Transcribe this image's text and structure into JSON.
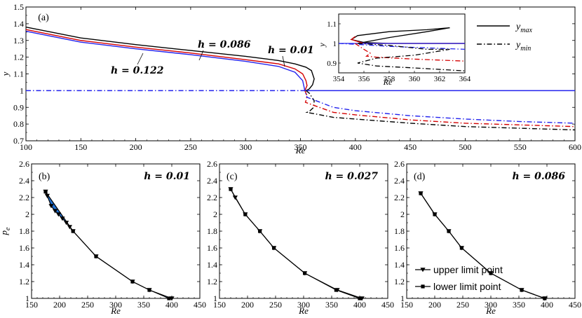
{
  "chart_data": [
    {
      "panel": "(a)",
      "type": "line",
      "xlabel": "Re",
      "ylabel": "y",
      "xlim": [
        100,
        600
      ],
      "ylim": [
        0.7,
        1.5
      ],
      "xticks": [
        "100",
        "150",
        "200",
        "250",
        "300",
        "350",
        "400",
        "450",
        "500",
        "550",
        "600"
      ],
      "yticks": [
        "0.7",
        "0.8",
        "0.9",
        "1",
        "1.1",
        "1.2",
        "1.3",
        "1.4",
        "1.5"
      ],
      "annotations": [
        "h = 0.086",
        "h = 0.01",
        "h = 0.122"
      ],
      "legend": {
        "position": "top-right",
        "entries": [
          "y_max",
          "y_min"
        ]
      },
      "series": [
        {
          "name": "h = 0.086",
          "kind": "y_max",
          "color": "#000000",
          "dash": "solid",
          "x": [
            100,
            150,
            200,
            250,
            300,
            330,
            345,
            355,
            360,
            362.5,
            361,
            358,
            355
          ],
          "y": [
            1.38,
            1.315,
            1.275,
            1.24,
            1.205,
            1.18,
            1.16,
            1.14,
            1.12,
            1.07,
            1.035,
            1.01,
            1.0
          ]
        },
        {
          "name": "h = 0.01",
          "kind": "y_max",
          "color": "#d40000",
          "dash": "solid",
          "x": [
            100,
            150,
            200,
            250,
            300,
            330,
            345,
            352,
            355,
            356,
            354
          ],
          "y": [
            1.365,
            1.3,
            1.26,
            1.225,
            1.185,
            1.16,
            1.13,
            1.1,
            1.06,
            1.03,
            1.0
          ]
        },
        {
          "name": "h = 0.122",
          "kind": "y_max",
          "color": "#2222ee",
          "dash": "solid",
          "x": [
            100,
            150,
            200,
            250,
            300,
            330,
            345,
            352,
            354,
            600
          ],
          "y": [
            1.355,
            1.29,
            1.25,
            1.215,
            1.175,
            1.145,
            1.11,
            1.06,
            1.0,
            1.0
          ]
        },
        {
          "name": "h = 0.086",
          "kind": "y_min",
          "color": "#000000",
          "dash": "dashdot",
          "x": [
            355,
            358,
            362.5,
            362,
            358,
            356,
            380,
            400,
            450,
            500,
            550,
            600
          ],
          "y": [
            1.0,
            0.985,
            0.94,
            0.9,
            0.875,
            0.87,
            0.84,
            0.83,
            0.805,
            0.785,
            0.775,
            0.765
          ]
        },
        {
          "name": "h = 0.01",
          "kind": "y_min",
          "color": "#d40000",
          "dash": "dashdot",
          "x": [
            354,
            356,
            355,
            354.5,
            380,
            400,
            450,
            500,
            550,
            600
          ],
          "y": [
            1.0,
            0.97,
            0.94,
            0.93,
            0.87,
            0.855,
            0.825,
            0.805,
            0.795,
            0.785
          ]
        },
        {
          "name": "h = 0.122",
          "kind": "y_min",
          "color": "#2222ee",
          "dash": "dashdot",
          "x": [
            100,
            354,
            356,
            380,
            400,
            450,
            500,
            550,
            600
          ],
          "y": [
            1.0,
            1.0,
            0.96,
            0.9,
            0.88,
            0.85,
            0.83,
            0.815,
            0.805
          ]
        }
      ],
      "inset": {
        "xlabel": "Re",
        "ylabel": "y",
        "xlim": [
          354,
          364
        ],
        "ylim": [
          0.85,
          1.15
        ],
        "xticks": [
          "354",
          "356",
          "358",
          "360",
          "362",
          "364"
        ],
        "yticks": [
          "0.9",
          "1",
          "1.1"
        ],
        "series": [
          {
            "color": "#000000",
            "dash": "solid",
            "x": [
              364,
              360,
              358,
              356,
              355,
              355.5,
              358,
              361,
              362.8
            ],
            "y": [
              1.0,
              1.0,
              1.0,
              1.005,
              1.02,
              1.04,
              1.06,
              1.07,
              1.08
            ]
          },
          {
            "color": "#000000",
            "dash": "solid",
            "x": [
              355.5,
              358,
              361,
              362.8
            ],
            "y": [
              1.0,
              1.03,
              1.06,
              1.08
            ]
          },
          {
            "color": "#d40000",
            "dash": "solid",
            "x": [
              364,
              356,
              355,
              355.3
            ],
            "y": [
              1.0,
              1.0,
              1.02,
              1.035
            ]
          },
          {
            "color": "#2222ee",
            "dash": "solid",
            "x": [
              354,
              364
            ],
            "y": [
              1.0,
              1.0
            ]
          },
          {
            "color": "#2222ee",
            "dash": "dashdot",
            "x": [
              354,
              355.5,
              358,
              360,
              362,
              364
            ],
            "y": [
              1.0,
              0.995,
              0.985,
              0.98,
              0.975,
              0.97
            ]
          },
          {
            "color": "#d40000",
            "dash": "dashdot",
            "x": [
              355.3,
              356,
              356.5,
              356.2,
              357,
              360,
              364
            ],
            "y": [
              1.0,
              0.97,
              0.95,
              0.935,
              0.93,
              0.92,
              0.91
            ]
          },
          {
            "color": "#000000",
            "dash": "dashdot",
            "x": [
              355.5,
              358,
              361,
              362.8,
              360,
              357,
              355.5,
              357,
              360,
              364
            ],
            "y": [
              1.0,
              0.99,
              0.97,
              0.97,
              0.94,
              0.925,
              0.9,
              0.885,
              0.875,
              0.86
            ]
          }
        ]
      }
    },
    {
      "panel": "(b)",
      "type": "line",
      "annotation": "h = 0.01",
      "xlabel": "Re",
      "ylabel": "p_e",
      "xlim": [
        150,
        450
      ],
      "ylim": [
        1,
        2.6
      ],
      "xticks": [
        "150",
        "200",
        "250",
        "300",
        "350",
        "400",
        "450"
      ],
      "yticks": [
        "1",
        "1.2",
        "1.4",
        "1.6",
        "1.8",
        "2",
        "2.2",
        "2.4",
        "2.6"
      ],
      "fill_color": "#1f6fd1",
      "upper": {
        "x": [
          175,
          178,
          185,
          192,
          198,
          205,
          212,
          218,
          224,
          265,
          330,
          360,
          400
        ],
        "y": [
          2.27,
          2.22,
          2.1,
          2.04,
          2.0,
          1.95,
          1.9,
          1.85,
          1.8,
          1.5,
          1.2,
          1.1,
          1.0
        ]
      },
      "lower": {
        "x": [
          175,
          224,
          265,
          330,
          360,
          395
        ],
        "y": [
          2.27,
          1.8,
          1.5,
          1.2,
          1.1,
          1.0
        ]
      }
    },
    {
      "panel": "(c)",
      "type": "line",
      "annotation": "h = 0.027",
      "xlabel": "Re",
      "ylabel": "p_e",
      "xlim": [
        150,
        450
      ],
      "ylim": [
        1,
        2.6
      ],
      "xticks": [
        "150",
        "200",
        "250",
        "300",
        "350",
        "400",
        "450"
      ],
      "yticks": [
        "1",
        "1.2",
        "1.4",
        "1.6",
        "1.8",
        "2",
        "2.2",
        "2.4",
        "2.6"
      ],
      "fill_color": "#1f6fd1",
      "upper": {
        "x": [
          170,
          178,
          196,
          222,
          247,
          302,
          360,
          404
        ],
        "y": [
          2.3,
          2.2,
          2.0,
          1.8,
          1.6,
          1.3,
          1.1,
          1.0
        ]
      },
      "lower": {
        "x": [
          170,
          196,
          222,
          247,
          302,
          358,
          400
        ],
        "y": [
          2.3,
          2.0,
          1.8,
          1.6,
          1.3,
          1.1,
          1.0
        ]
      }
    },
    {
      "panel": "(d)",
      "type": "line",
      "annotation": "h = 0.086",
      "xlabel": "Re",
      "ylabel": "p_e",
      "xlim": [
        150,
        450
      ],
      "ylim": [
        1,
        2.6
      ],
      "xticks": [
        "150",
        "200",
        "250",
        "300",
        "350",
        "400",
        "450"
      ],
      "yticks": [
        "1",
        "1.2",
        "1.4",
        "1.6",
        "1.8",
        "2",
        "2.2",
        "2.4",
        "2.6"
      ],
      "legend": {
        "position": "bottom-right",
        "entries": [
          "upper limit point",
          "lower limit point"
        ]
      },
      "upper": {
        "x": [
          175,
          200,
          225,
          248,
          300,
          355,
          396
        ],
        "y": [
          2.25,
          2.0,
          1.8,
          1.6,
          1.3,
          1.1,
          1.0
        ]
      },
      "lower": {
        "x": [
          175,
          200,
          225,
          248,
          300,
          355,
          396
        ],
        "y": [
          2.25,
          2.0,
          1.8,
          1.6,
          1.3,
          1.1,
          1.0
        ]
      }
    }
  ]
}
